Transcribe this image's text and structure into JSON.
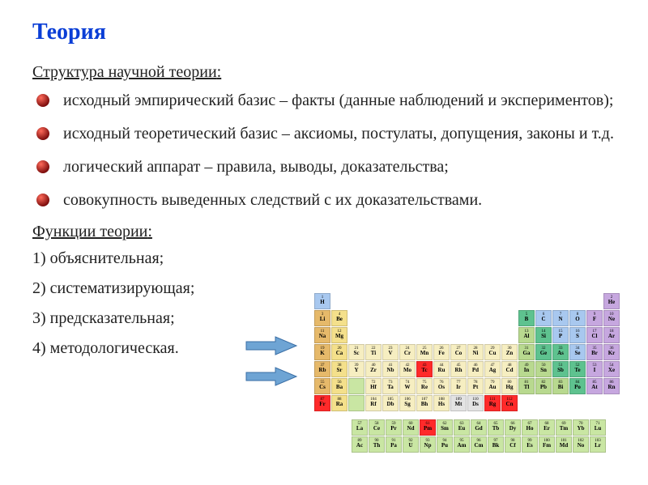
{
  "title": "Теория",
  "subtitle1": "Структура научной теории",
  "bullets": [
    "исходный эмпирический базис – факты (данные наблюдений и экспериментов);",
    "исходный теоретический базис – аксиомы, постулаты, допущения, законы и т.д.",
    "логический аппарат – правила, выводы, доказательства;",
    "совокупность выведенных следствий с их доказательствами."
  ],
  "subtitle2": "Функции теории",
  "functions": [
    "1) объяснительная;",
    "2) систематизирующая;",
    "3) предсказательная;",
    "4) методологическая."
  ],
  "colors": {
    "title": "#0a3ed6",
    "text": "#222222",
    "bullet_sphere_light": "#ff6a5a",
    "bullet_sphere_dark": "#7a0b0b",
    "arrow_fill": "#6ea4d4",
    "arrow_stroke": "#3a6ea5",
    "pt_border": "#cccccc"
  },
  "periodic_table": {
    "group_colors": {
      "alkali": "#e6b96a",
      "alkaline": "#f4e08b",
      "transition": "#f6eec1",
      "post": "#b8d98f",
      "metalloid": "#5ec28f",
      "nonmetal": "#a8c8ef",
      "halogen": "#c6a7df",
      "noble": "#c6a7df",
      "lanth": "#c9e6a3",
      "actin": "#c9e6a3",
      "unknown": "#e3e3e3",
      "highlight_red": "#ff2a2a"
    },
    "rows": [
      [
        [
          "1",
          "H",
          "nonmetal"
        ],
        null,
        null,
        null,
        null,
        null,
        null,
        null,
        null,
        null,
        null,
        null,
        null,
        null,
        null,
        null,
        null,
        [
          "2",
          "He",
          "noble"
        ]
      ],
      [
        [
          "3",
          "Li",
          "alkali"
        ],
        [
          "4",
          "Be",
          "alkaline"
        ],
        null,
        null,
        null,
        null,
        null,
        null,
        null,
        null,
        null,
        null,
        [
          "5",
          "B",
          "metalloid"
        ],
        [
          "6",
          "C",
          "nonmetal"
        ],
        [
          "7",
          "N",
          "nonmetal"
        ],
        [
          "8",
          "O",
          "nonmetal"
        ],
        [
          "9",
          "F",
          "halogen"
        ],
        [
          "10",
          "Ne",
          "noble"
        ]
      ],
      [
        [
          "11",
          "Na",
          "alkali"
        ],
        [
          "12",
          "Mg",
          "alkaline"
        ],
        null,
        null,
        null,
        null,
        null,
        null,
        null,
        null,
        null,
        null,
        [
          "13",
          "Al",
          "post"
        ],
        [
          "14",
          "Si",
          "metalloid"
        ],
        [
          "15",
          "P",
          "nonmetal"
        ],
        [
          "16",
          "S",
          "nonmetal"
        ],
        [
          "17",
          "Cl",
          "halogen"
        ],
        [
          "18",
          "Ar",
          "noble"
        ]
      ],
      [
        [
          "19",
          "K",
          "alkali"
        ],
        [
          "20",
          "Ca",
          "alkaline"
        ],
        [
          "21",
          "Sc",
          "transition"
        ],
        [
          "22",
          "Ti",
          "transition"
        ],
        [
          "23",
          "V",
          "transition"
        ],
        [
          "24",
          "Cr",
          "transition"
        ],
        [
          "25",
          "Mn",
          "transition"
        ],
        [
          "26",
          "Fe",
          "transition"
        ],
        [
          "27",
          "Co",
          "transition"
        ],
        [
          "28",
          "Ni",
          "transition"
        ],
        [
          "29",
          "Cu",
          "transition"
        ],
        [
          "30",
          "Zn",
          "transition"
        ],
        [
          "31",
          "Ga",
          "post"
        ],
        [
          "32",
          "Ge",
          "metalloid"
        ],
        [
          "33",
          "As",
          "metalloid"
        ],
        [
          "34",
          "Se",
          "nonmetal"
        ],
        [
          "35",
          "Br",
          "halogen"
        ],
        [
          "36",
          "Kr",
          "noble"
        ]
      ],
      [
        [
          "37",
          "Rb",
          "alkali"
        ],
        [
          "38",
          "Sr",
          "alkaline"
        ],
        [
          "39",
          "Y",
          "transition"
        ],
        [
          "40",
          "Zr",
          "transition"
        ],
        [
          "41",
          "Nb",
          "transition"
        ],
        [
          "42",
          "Mo",
          "transition"
        ],
        [
          "43",
          "Tc",
          "highlight_red"
        ],
        [
          "44",
          "Ru",
          "transition"
        ],
        [
          "45",
          "Rh",
          "transition"
        ],
        [
          "46",
          "Pd",
          "transition"
        ],
        [
          "47",
          "Ag",
          "transition"
        ],
        [
          "48",
          "Cd",
          "transition"
        ],
        [
          "49",
          "In",
          "post"
        ],
        [
          "50",
          "Sn",
          "post"
        ],
        [
          "51",
          "Sb",
          "metalloid"
        ],
        [
          "52",
          "Te",
          "metalloid"
        ],
        [
          "53",
          "I",
          "halogen"
        ],
        [
          "54",
          "Xe",
          "noble"
        ]
      ],
      [
        [
          "55",
          "Cs",
          "alkali"
        ],
        [
          "56",
          "Ba",
          "alkaline"
        ],
        [
          "",
          "",
          "lanth"
        ],
        [
          "72",
          "Hf",
          "transition"
        ],
        [
          "73",
          "Ta",
          "transition"
        ],
        [
          "74",
          "W",
          "transition"
        ],
        [
          "75",
          "Re",
          "transition"
        ],
        [
          "76",
          "Os",
          "transition"
        ],
        [
          "77",
          "Ir",
          "transition"
        ],
        [
          "78",
          "Pt",
          "transition"
        ],
        [
          "79",
          "Au",
          "transition"
        ],
        [
          "80",
          "Hg",
          "transition"
        ],
        [
          "81",
          "Tl",
          "post"
        ],
        [
          "82",
          "Pb",
          "post"
        ],
        [
          "83",
          "Bi",
          "post"
        ],
        [
          "84",
          "Po",
          "metalloid"
        ],
        [
          "85",
          "At",
          "halogen"
        ],
        [
          "86",
          "Rn",
          "noble"
        ]
      ],
      [
        [
          "87",
          "Fr",
          "highlight_red"
        ],
        [
          "88",
          "Ra",
          "alkaline"
        ],
        [
          "",
          "",
          "actin"
        ],
        [
          "104",
          "Rf",
          "transition"
        ],
        [
          "105",
          "Db",
          "transition"
        ],
        [
          "106",
          "Sg",
          "transition"
        ],
        [
          "107",
          "Bh",
          "transition"
        ],
        [
          "108",
          "Hs",
          "transition"
        ],
        [
          "109",
          "Mt",
          "unknown"
        ],
        [
          "110",
          "Ds",
          "unknown"
        ],
        [
          "111",
          "Rg",
          "highlight_red"
        ],
        [
          "112",
          "Cn",
          "highlight_red"
        ],
        null,
        null,
        null,
        null,
        null,
        null
      ]
    ],
    "f_block": [
      [
        [
          "57",
          "La",
          "lanth"
        ],
        [
          "58",
          "Ce",
          "lanth"
        ],
        [
          "59",
          "Pr",
          "lanth"
        ],
        [
          "60",
          "Nd",
          "lanth"
        ],
        [
          "61",
          "Pm",
          "highlight_red"
        ],
        [
          "62",
          "Sm",
          "lanth"
        ],
        [
          "63",
          "Eu",
          "lanth"
        ],
        [
          "64",
          "Gd",
          "lanth"
        ],
        [
          "65",
          "Tb",
          "lanth"
        ],
        [
          "66",
          "Dy",
          "lanth"
        ],
        [
          "67",
          "Ho",
          "lanth"
        ],
        [
          "68",
          "Er",
          "lanth"
        ],
        [
          "69",
          "Tm",
          "lanth"
        ],
        [
          "70",
          "Yb",
          "lanth"
        ],
        [
          "71",
          "Lu",
          "lanth"
        ]
      ],
      [
        [
          "89",
          "Ac",
          "actin"
        ],
        [
          "90",
          "Th",
          "actin"
        ],
        [
          "91",
          "Pa",
          "actin"
        ],
        [
          "92",
          "U",
          "actin"
        ],
        [
          "93",
          "Np",
          "actin"
        ],
        [
          "94",
          "Pu",
          "actin"
        ],
        [
          "95",
          "Am",
          "actin"
        ],
        [
          "96",
          "Cm",
          "actin"
        ],
        [
          "97",
          "Bk",
          "actin"
        ],
        [
          "98",
          "Cf",
          "actin"
        ],
        [
          "99",
          "Es",
          "actin"
        ],
        [
          "100",
          "Fm",
          "actin"
        ],
        [
          "101",
          "Md",
          "actin"
        ],
        [
          "102",
          "No",
          "actin"
        ],
        [
          "103",
          "Lr",
          "actin"
        ]
      ]
    ]
  }
}
